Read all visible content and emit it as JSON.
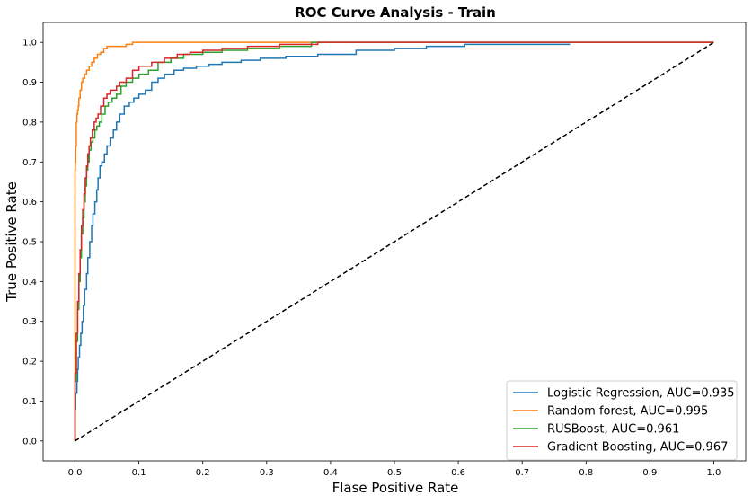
{
  "chart_data": {
    "type": "line",
    "title": "ROC Curve Analysis - Train",
    "xlabel": "Flase Positive Rate",
    "ylabel": "True Positive Rate",
    "xlim": [
      -0.05,
      1.05
    ],
    "ylim": [
      -0.05,
      1.05
    ],
    "x_ticks": [
      "0.0",
      "0.1",
      "0.2",
      "0.3",
      "0.4",
      "0.5",
      "0.6",
      "0.7",
      "0.8",
      "0.9",
      "1.0"
    ],
    "y_ticks": [
      "0.0",
      "0.1",
      "0.2",
      "0.3",
      "0.4",
      "0.5",
      "0.6",
      "0.7",
      "0.8",
      "0.9",
      "1.0"
    ],
    "grid": false,
    "legend_position": "lower right",
    "series": [
      {
        "name": "Logistic Regression, AUC=0.935",
        "color": "#1f77b4",
        "x": [
          0,
          0.001,
          0.003,
          0.004,
          0.005,
          0.007,
          0.009,
          0.011,
          0.013,
          0.015,
          0.018,
          0.02,
          0.023,
          0.026,
          0.028,
          0.031,
          0.034,
          0.036,
          0.039,
          0.042,
          0.046,
          0.05,
          0.055,
          0.06,
          0.065,
          0.07,
          0.077,
          0.085,
          0.092,
          0.1,
          0.11,
          0.12,
          0.13,
          0.14,
          0.155,
          0.17,
          0.19,
          0.21,
          0.23,
          0.26,
          0.29,
          0.33,
          0.38,
          0.44,
          0.5,
          0.55,
          0.61,
          0.7,
          0.775
        ],
        "y": [
          0,
          0.08,
          0.12,
          0.15,
          0.18,
          0.21,
          0.24,
          0.27,
          0.3,
          0.34,
          0.38,
          0.42,
          0.46,
          0.5,
          0.54,
          0.57,
          0.6,
          0.63,
          0.66,
          0.69,
          0.7,
          0.72,
          0.74,
          0.76,
          0.78,
          0.8,
          0.82,
          0.84,
          0.85,
          0.86,
          0.87,
          0.88,
          0.9,
          0.91,
          0.92,
          0.93,
          0.935,
          0.94,
          0.945,
          0.95,
          0.955,
          0.96,
          0.965,
          0.97,
          0.98,
          0.985,
          0.99,
          0.995,
          0.995
        ]
      },
      {
        "name": "Random forest, AUC=0.995",
        "color": "#ff7f0e",
        "x": [
          0,
          0.0005,
          0.001,
          0.002,
          0.003,
          0.004,
          0.005,
          0.006,
          0.008,
          0.01,
          0.012,
          0.015,
          0.018,
          0.022,
          0.026,
          0.03,
          0.035,
          0.04,
          0.045,
          0.05,
          0.06,
          0.07,
          0.08,
          0.09,
          0.1,
          0.12,
          0.15,
          0.2,
          0.3,
          1.0
        ],
        "y": [
          0,
          0.68,
          0.7,
          0.74,
          0.8,
          0.82,
          0.83,
          0.84,
          0.86,
          0.88,
          0.9,
          0.91,
          0.92,
          0.93,
          0.94,
          0.95,
          0.96,
          0.97,
          0.975,
          0.985,
          0.99,
          0.99,
          0.99,
          0.995,
          1.0,
          1.0,
          1.0,
          1.0,
          1.0,
          1.0
        ]
      },
      {
        "name": "RUSBoost, AUC=0.961",
        "color": "#2ca02c",
        "x": [
          0,
          0.002,
          0.004,
          0.006,
          0.008,
          0.01,
          0.012,
          0.014,
          0.016,
          0.018,
          0.02,
          0.022,
          0.025,
          0.028,
          0.031,
          0.034,
          0.038,
          0.042,
          0.047,
          0.052,
          0.058,
          0.065,
          0.072,
          0.08,
          0.09,
          0.1,
          0.115,
          0.13,
          0.15,
          0.17,
          0.2,
          0.23,
          0.27,
          0.32,
          0.37,
          0.41,
          0.5,
          0.7,
          1.0
        ],
        "y": [
          0,
          0.15,
          0.25,
          0.33,
          0.4,
          0.46,
          0.52,
          0.56,
          0.6,
          0.64,
          0.68,
          0.7,
          0.73,
          0.75,
          0.76,
          0.78,
          0.79,
          0.8,
          0.82,
          0.84,
          0.85,
          0.86,
          0.87,
          0.89,
          0.9,
          0.91,
          0.92,
          0.93,
          0.95,
          0.96,
          0.97,
          0.975,
          0.98,
          0.985,
          0.99,
          1.0,
          1.0,
          1.0,
          1.0
        ]
      },
      {
        "name": "Gradient Boosting, AUC=0.967",
        "color": "#d62728",
        "x": [
          0,
          0.002,
          0.004,
          0.006,
          0.008,
          0.01,
          0.012,
          0.014,
          0.016,
          0.018,
          0.02,
          0.022,
          0.024,
          0.027,
          0.03,
          0.033,
          0.036,
          0.04,
          0.045,
          0.05,
          0.055,
          0.06,
          0.065,
          0.07,
          0.08,
          0.09,
          0.1,
          0.12,
          0.14,
          0.16,
          0.18,
          0.2,
          0.23,
          0.27,
          0.32,
          0.38,
          0.42,
          0.5,
          1.0
        ],
        "y": [
          0,
          0.17,
          0.27,
          0.35,
          0.42,
          0.48,
          0.54,
          0.58,
          0.62,
          0.66,
          0.69,
          0.72,
          0.74,
          0.76,
          0.78,
          0.8,
          0.81,
          0.82,
          0.84,
          0.86,
          0.87,
          0.88,
          0.88,
          0.89,
          0.9,
          0.91,
          0.93,
          0.94,
          0.95,
          0.96,
          0.97,
          0.975,
          0.98,
          0.985,
          0.99,
          0.995,
          1.0,
          1.0,
          1.0
        ]
      },
      {
        "name": "",
        "color": "#000000",
        "dashed": true,
        "x": [
          0,
          1
        ],
        "y": [
          0,
          1
        ]
      }
    ]
  }
}
